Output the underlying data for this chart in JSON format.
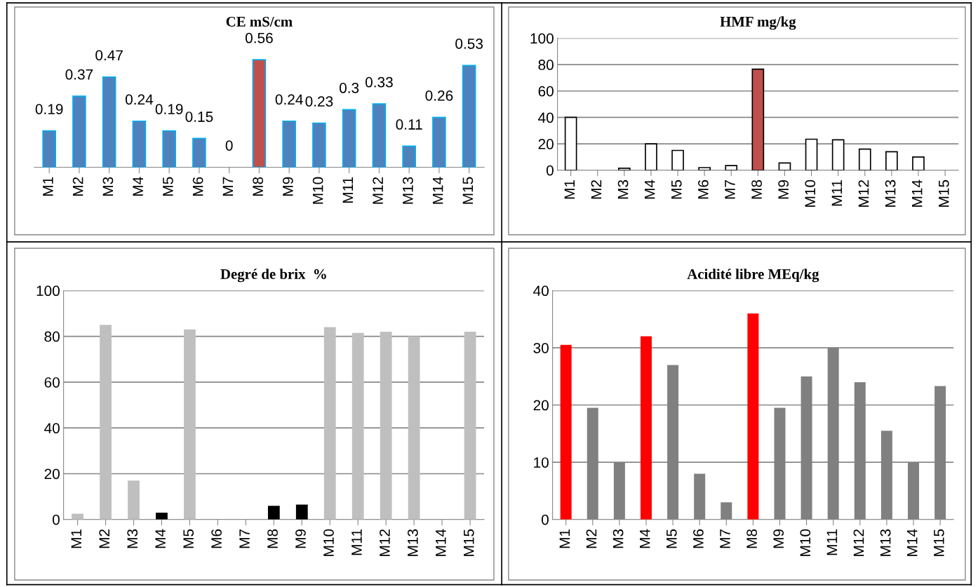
{
  "chart_data": [
    {
      "type": "bar",
      "title": "CE mS/cm",
      "categories": [
        "M1",
        "M2",
        "M3",
        "M4",
        "M5",
        "M6",
        "M7",
        "M8",
        "M9",
        "M10",
        "M11",
        "M12",
        "M13",
        "M14",
        "M15"
      ],
      "values": [
        0.19,
        0.37,
        0.47,
        0.24,
        0.19,
        0.15,
        0,
        0.56,
        0.24,
        0.23,
        0.3,
        0.33,
        0.11,
        0.26,
        0.53
      ],
      "colors": [
        "#4f81bd",
        "#4f81bd",
        "#4f81bd",
        "#4f81bd",
        "#4f81bd",
        "#4f81bd",
        "#4f81bd",
        "#c0504d",
        "#4f81bd",
        "#4f81bd",
        "#4f81bd",
        "#4f81bd",
        "#4f81bd",
        "#4f81bd",
        "#4f81bd"
      ],
      "data_labels": true,
      "tick_labels": "x",
      "grid": false
    },
    {
      "type": "bar",
      "title": "HMF mg/kg",
      "categories": [
        "M1",
        "M2",
        "M3",
        "M4",
        "M5",
        "M6",
        "M7",
        "M8",
        "M9",
        "M10",
        "M11",
        "M12",
        "M13",
        "M14",
        "M15"
      ],
      "values": [
        40,
        null,
        1.5,
        20,
        15,
        2,
        3.5,
        76.5,
        5.5,
        23.5,
        23,
        16,
        14,
        10,
        null
      ],
      "colors": [
        "#ffffff",
        "#ffffff",
        "#ffffff",
        "#ffffff",
        "#ffffff",
        "#ffffff",
        "#ffffff",
        "#c0504d",
        "#ffffff",
        "#ffffff",
        "#ffffff",
        "#ffffff",
        "#ffffff",
        "#ffffff",
        "#ffffff"
      ],
      "ylim": [
        0,
        100
      ],
      "yticks": [
        0,
        20,
        40,
        60,
        80,
        100
      ],
      "grid": "y"
    },
    {
      "type": "bar",
      "title": "Degré de brix  %",
      "categories": [
        "M1",
        "M2",
        "M3",
        "M4",
        "M5",
        "M6",
        "M7",
        "M8",
        "M9",
        "M10",
        "M11",
        "M12",
        "M13",
        "M14",
        "M15"
      ],
      "values": [
        2.5,
        85,
        17,
        3,
        83,
        null,
        null,
        6,
        6.5,
        84,
        81.5,
        82,
        80,
        null,
        82
      ],
      "colors": [
        "#bfbfbf",
        "#bfbfbf",
        "#bfbfbf",
        "#000000",
        "#bfbfbf",
        "#bfbfbf",
        "#bfbfbf",
        "#000000",
        "#000000",
        "#bfbfbf",
        "#bfbfbf",
        "#bfbfbf",
        "#bfbfbf",
        "#bfbfbf",
        "#bfbfbf"
      ],
      "ylim": [
        0,
        100
      ],
      "yticks": [
        0,
        20,
        40,
        60,
        80,
        100
      ],
      "grid": "y"
    },
    {
      "type": "bar",
      "title": "Acidité libre MEq/kg",
      "categories": [
        "M1",
        "M2",
        "M3",
        "M4",
        "M5",
        "M6",
        "M7",
        "M8",
        "M9",
        "M10",
        "M11",
        "M12",
        "M13",
        "M14",
        "M15"
      ],
      "values": [
        30.5,
        19.5,
        10,
        32,
        27,
        8,
        3,
        36,
        19.5,
        25,
        30,
        24,
        15.5,
        10,
        23.3
      ],
      "colors": [
        "#ff0000",
        "#808080",
        "#808080",
        "#ff0000",
        "#808080",
        "#808080",
        "#808080",
        "#ff0000",
        "#808080",
        "#808080",
        "#808080",
        "#808080",
        "#808080",
        "#808080",
        "#808080"
      ],
      "ylim": [
        0,
        40
      ],
      "yticks": [
        0,
        10,
        20,
        30,
        40
      ],
      "grid": "y"
    }
  ]
}
